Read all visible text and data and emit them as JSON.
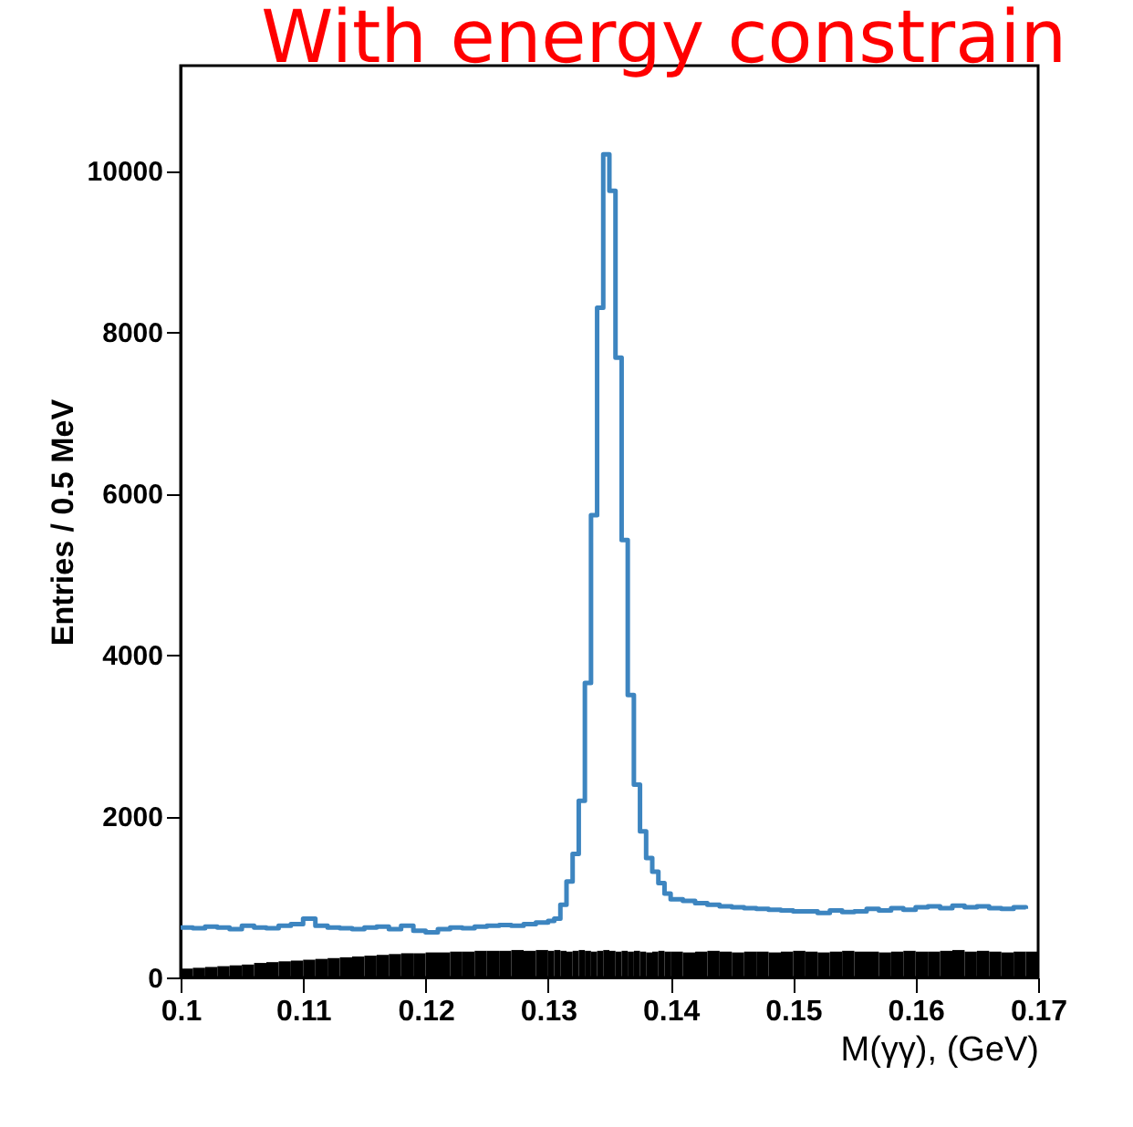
{
  "chart_data": {
    "type": "histogram",
    "title": "With energy constrain",
    "xlabel": "M(γγ), (GeV)",
    "ylabel": "Entries / 0.5 MeV",
    "bins": [
      0.1,
      0.101,
      0.102,
      0.103,
      0.104,
      0.105,
      0.106,
      0.107,
      0.108,
      0.109,
      0.11,
      0.111,
      0.112,
      0.113,
      0.114,
      0.115,
      0.116,
      0.117,
      0.118,
      0.119,
      0.12,
      0.121,
      0.122,
      0.123,
      0.124,
      0.125,
      0.126,
      0.127,
      0.128,
      0.129,
      0.13,
      0.1305,
      0.131,
      0.1315,
      0.132,
      0.1325,
      0.133,
      0.1335,
      0.134,
      0.1345,
      0.135,
      0.1355,
      0.136,
      0.1365,
      0.137,
      0.1375,
      0.138,
      0.1385,
      0.139,
      0.1395,
      0.14,
      0.141,
      0.142,
      0.143,
      0.144,
      0.145,
      0.146,
      0.147,
      0.148,
      0.149,
      0.15,
      0.151,
      0.152,
      0.153,
      0.154,
      0.155,
      0.156,
      0.157,
      0.158,
      0.159,
      0.16,
      0.161,
      0.162,
      0.163,
      0.164,
      0.165,
      0.166,
      0.167,
      0.168,
      0.169,
      0.17
    ],
    "series": [
      {
        "color": "#000000",
        "values": [
          110,
          120,
          130,
          140,
          150,
          160,
          180,
          190,
          200,
          210,
          220,
          230,
          240,
          250,
          260,
          270,
          280,
          290,
          300,
          300,
          310,
          310,
          320,
          320,
          330,
          330,
          330,
          340,
          330,
          340,
          330,
          340,
          330,
          320,
          330,
          340,
          330,
          320,
          330,
          340,
          330,
          320,
          330,
          320,
          330,
          320,
          310,
          320,
          330,
          320,
          320,
          310,
          320,
          330,
          320,
          310,
          320,
          320,
          310,
          320,
          330,
          320,
          310,
          320,
          330,
          320,
          320,
          310,
          320,
          330,
          320,
          320,
          330,
          340,
          320,
          330,
          320,
          310,
          320,
          320
        ]
      },
      {
        "type": "step",
        "color": "#3d85c0",
        "x": [
          0.1,
          0.101,
          0.102,
          0.103,
          0.104,
          0.105,
          0.106,
          0.107,
          0.108,
          0.109,
          0.11,
          0.111,
          0.112,
          0.113,
          0.114,
          0.115,
          0.116,
          0.117,
          0.118,
          0.119,
          0.12,
          0.121,
          0.122,
          0.123,
          0.124,
          0.125,
          0.126,
          0.127,
          0.128,
          0.129,
          0.13,
          0.1305,
          0.131,
          0.1315,
          0.132,
          0.1325,
          0.133,
          0.1335,
          0.134,
          0.1345,
          0.135,
          0.1355,
          0.136,
          0.1365,
          0.137,
          0.1375,
          0.138,
          0.1385,
          0.139,
          0.1395,
          0.14,
          0.141,
          0.142,
          0.143,
          0.144,
          0.145,
          0.146,
          0.147,
          0.148,
          0.149,
          0.15,
          0.151,
          0.152,
          0.153,
          0.154,
          0.155,
          0.156,
          0.157,
          0.158,
          0.159,
          0.16,
          0.161,
          0.162,
          0.163,
          0.164,
          0.165,
          0.166,
          0.167,
          0.168,
          0.169
        ],
        "values": [
          620,
          610,
          630,
          620,
          600,
          640,
          620,
          610,
          640,
          660,
          730,
          640,
          620,
          610,
          600,
          620,
          630,
          600,
          640,
          580,
          560,
          600,
          620,
          610,
          630,
          640,
          650,
          640,
          660,
          680,
          700,
          730,
          900,
          1190,
          1530,
          2190,
          3650,
          5730,
          8300,
          10200,
          9750,
          7680,
          5420,
          3500,
          2390,
          1810,
          1480,
          1310,
          1170,
          1040,
          970,
          950,
          920,
          900,
          880,
          870,
          860,
          850,
          840,
          830,
          820,
          820,
          800,
          830,
          810,
          820,
          850,
          830,
          860,
          840,
          870,
          880,
          860,
          890,
          870,
          880,
          860,
          850,
          870,
          850
        ]
      }
    ],
    "xlim": [
      0.1,
      0.17
    ],
    "xticks": [
      0.1,
      0.11,
      0.12,
      0.13,
      0.14,
      0.15,
      0.16,
      0.17
    ],
    "ylim": [
      0,
      11300
    ],
    "yticks": [
      0,
      2000,
      4000,
      6000,
      8000,
      10000
    ],
    "grid": false
  }
}
